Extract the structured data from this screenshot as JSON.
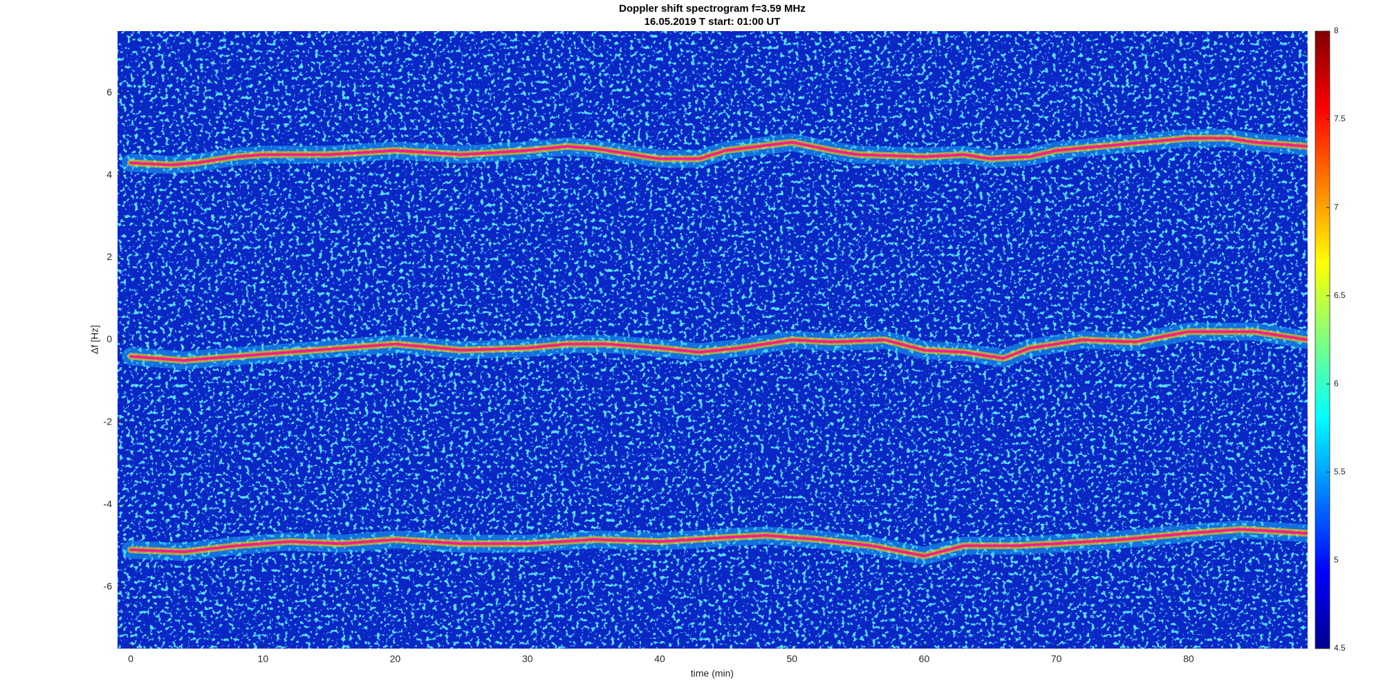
{
  "chart_data": {
    "type": "spectrogram",
    "title": "Doppler shift spectrogram f=3.59 MHz",
    "subtitle": "16.05.2019   T start: 01:00 UT",
    "xlabel": "time (min)",
    "ylabel": "Δf [Hz]",
    "xlim": [
      -1,
      89
    ],
    "ylim": [
      -7.5,
      7.5
    ],
    "xticks": [
      0,
      10,
      20,
      30,
      40,
      50,
      60,
      70,
      80
    ],
    "yticks": [
      -6,
      -4,
      -2,
      0,
      2,
      4,
      6
    ],
    "colorbar": {
      "lim": [
        4.5,
        8
      ],
      "ticks": [
        4.5,
        5,
        5.5,
        6,
        6.5,
        7,
        7.5,
        8
      ],
      "colormap": "jet"
    },
    "series": [
      {
        "color": "#ff00ff",
        "x": [
          0,
          3,
          5,
          8,
          10,
          15,
          20,
          25,
          30,
          33,
          35,
          40,
          43,
          45,
          50,
          53,
          55,
          60,
          63,
          65,
          68,
          70,
          75,
          80,
          83,
          85,
          89
        ],
        "values": [
          4.3,
          4.25,
          4.3,
          4.45,
          4.5,
          4.5,
          4.6,
          4.5,
          4.6,
          4.7,
          4.65,
          4.4,
          4.4,
          4.6,
          4.8,
          4.6,
          4.5,
          4.45,
          4.5,
          4.4,
          4.45,
          4.6,
          4.75,
          4.9,
          4.9,
          4.8,
          4.7
        ]
      },
      {
        "color": "#ff00ff",
        "x": [
          0,
          4,
          8,
          12,
          16,
          20,
          25,
          30,
          33,
          36,
          40,
          43,
          46,
          50,
          53,
          57,
          60,
          63,
          66,
          68,
          72,
          76,
          80,
          85,
          89
        ],
        "values": [
          -0.4,
          -0.5,
          -0.4,
          -0.3,
          -0.2,
          -0.1,
          -0.25,
          -0.2,
          -0.1,
          -0.1,
          -0.2,
          -0.3,
          -0.2,
          0,
          -0.05,
          0,
          -0.25,
          -0.3,
          -0.45,
          -0.2,
          0,
          -0.05,
          0.2,
          0.2,
          0
        ]
      },
      {
        "color": "#ff00ff",
        "x": [
          0,
          4,
          8,
          12,
          16,
          20,
          25,
          30,
          35,
          40,
          45,
          48,
          52,
          56,
          60,
          63,
          67,
          70,
          75,
          80,
          84,
          89
        ],
        "values": [
          -5.1,
          -5.15,
          -5.0,
          -4.9,
          -4.95,
          -4.85,
          -4.95,
          -4.95,
          -4.85,
          -4.9,
          -4.8,
          -4.75,
          -4.85,
          -5.0,
          -5.25,
          -5.0,
          -5.0,
          -4.95,
          -4.85,
          -4.7,
          -4.6,
          -4.7
        ]
      }
    ]
  }
}
